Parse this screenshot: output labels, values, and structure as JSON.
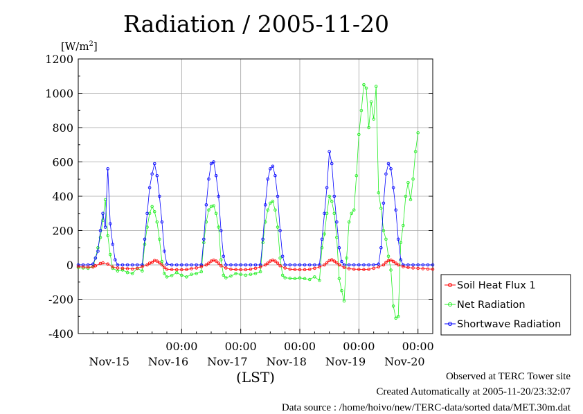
{
  "chart_data": {
    "type": "line",
    "title": "Radiation / 2005-11-20",
    "ylabel": "[W/m",
    "ylabel_sup": "2",
    "ylabel_close": "]",
    "xlabel": "(LST)",
    "ylim": [
      -400,
      1200
    ],
    "yticks": [
      -400,
      -200,
      0,
      200,
      400,
      600,
      800,
      1000,
      1200
    ],
    "ytick_labels": [
      "-400",
      "-200",
      "0",
      "200",
      "400",
      "600",
      "800",
      "1000",
      "1200"
    ],
    "x_hours": [
      0,
      144
    ],
    "x_time_ticks": [
      {
        "hour": 42,
        "label": "00:00"
      },
      {
        "hour": 66,
        "label": "00:00"
      },
      {
        "hour": 90,
        "label": "00:00"
      },
      {
        "hour": 114,
        "label": "00:00"
      },
      {
        "hour": 138,
        "label": "00:00"
      }
    ],
    "x_date_labels": [
      {
        "hour": 12,
        "label": "Nov-15"
      },
      {
        "hour": 36,
        "label": "Nov-16"
      },
      {
        "hour": 60,
        "label": "Nov-17"
      },
      {
        "hour": 84,
        "label": "Nov-18"
      },
      {
        "hour": 108,
        "label": "Nov-19"
      },
      {
        "hour": 132,
        "label": "Nov-20"
      }
    ],
    "grid": true,
    "legend_position": "right",
    "series": [
      {
        "name": "Soil Heat Flux 1",
        "color": "#ff0000",
        "marker": "circle",
        "points": [
          [
            0,
            -10
          ],
          [
            2,
            -12
          ],
          [
            4,
            -13
          ],
          [
            6,
            -12
          ],
          [
            7,
            -5
          ],
          [
            9,
            8
          ],
          [
            10,
            12
          ],
          [
            12,
            5
          ],
          [
            14,
            -12
          ],
          [
            16,
            -18
          ],
          [
            18,
            -20
          ],
          [
            20,
            -22
          ],
          [
            22,
            -24
          ],
          [
            24,
            -20
          ],
          [
            26,
            -10
          ],
          [
            28,
            0
          ],
          [
            29,
            10
          ],
          [
            30,
            15
          ],
          [
            31,
            26
          ],
          [
            32,
            22
          ],
          [
            33,
            12
          ],
          [
            34,
            0
          ],
          [
            35,
            -15
          ],
          [
            36,
            -25
          ],
          [
            38,
            -27
          ],
          [
            40,
            -28
          ],
          [
            42,
            -28
          ],
          [
            44,
            -27
          ],
          [
            46,
            -22
          ],
          [
            48,
            -18
          ],
          [
            50,
            -10
          ],
          [
            52,
            0
          ],
          [
            53,
            10
          ],
          [
            54,
            22
          ],
          [
            55,
            28
          ],
          [
            56,
            22
          ],
          [
            57,
            10
          ],
          [
            58,
            -5
          ],
          [
            60,
            -18
          ],
          [
            62,
            -25
          ],
          [
            64,
            -27
          ],
          [
            66,
            -28
          ],
          [
            68,
            -28
          ],
          [
            70,
            -25
          ],
          [
            72,
            -20
          ],
          [
            74,
            -12
          ],
          [
            76,
            0
          ],
          [
            77,
            10
          ],
          [
            78,
            22
          ],
          [
            79,
            28
          ],
          [
            80,
            22
          ],
          [
            81,
            10
          ],
          [
            82,
            -5
          ],
          [
            84,
            -18
          ],
          [
            86,
            -25
          ],
          [
            88,
            -27
          ],
          [
            90,
            -28
          ],
          [
            92,
            -28
          ],
          [
            94,
            -26
          ],
          [
            96,
            -20
          ],
          [
            98,
            -12
          ],
          [
            100,
            0
          ],
          [
            101,
            12
          ],
          [
            102,
            25
          ],
          [
            103,
            30
          ],
          [
            104,
            22
          ],
          [
            105,
            12
          ],
          [
            106,
            0
          ],
          [
            108,
            -15
          ],
          [
            110,
            -22
          ],
          [
            112,
            -25
          ],
          [
            114,
            -26
          ],
          [
            116,
            -27
          ],
          [
            118,
            -26
          ],
          [
            120,
            -20
          ],
          [
            122,
            -12
          ],
          [
            124,
            0
          ],
          [
            125,
            15
          ],
          [
            126,
            25
          ],
          [
            127,
            28
          ],
          [
            128,
            20
          ],
          [
            129,
            10
          ],
          [
            130,
            0
          ],
          [
            132,
            -10
          ],
          [
            134,
            -15
          ],
          [
            136,
            -18
          ],
          [
            138,
            -20
          ],
          [
            140,
            -22
          ],
          [
            142,
            -24
          ],
          [
            144,
            -25
          ]
        ]
      },
      {
        "name": "Net Radiation",
        "color": "#22ee22",
        "marker": "circle",
        "points": [
          [
            0,
            -15
          ],
          [
            2,
            -18
          ],
          [
            4,
            -20
          ],
          [
            6,
            -10
          ],
          [
            7,
            40
          ],
          [
            8,
            100
          ],
          [
            9,
            160
          ],
          [
            10,
            260
          ],
          [
            11,
            380
          ],
          [
            12,
            170
          ],
          [
            13,
            60
          ],
          [
            14,
            -20
          ],
          [
            16,
            -35
          ],
          [
            18,
            -30
          ],
          [
            20,
            -45
          ],
          [
            22,
            -50
          ],
          [
            24,
            -20
          ],
          [
            26,
            -35
          ],
          [
            27,
            120
          ],
          [
            28,
            220
          ],
          [
            29,
            300
          ],
          [
            30,
            340
          ],
          [
            31,
            310
          ],
          [
            32,
            250
          ],
          [
            33,
            150
          ],
          [
            34,
            20
          ],
          [
            35,
            -50
          ],
          [
            36,
            -70
          ],
          [
            38,
            -62
          ],
          [
            40,
            -45
          ],
          [
            42,
            -60
          ],
          [
            44,
            -70
          ],
          [
            46,
            -55
          ],
          [
            48,
            -50
          ],
          [
            50,
            -40
          ],
          [
            51,
            130
          ],
          [
            52,
            250
          ],
          [
            53,
            320
          ],
          [
            54,
            340
          ],
          [
            55,
            345
          ],
          [
            56,
            300
          ],
          [
            57,
            220
          ],
          [
            58,
            30
          ],
          [
            59,
            -60
          ],
          [
            60,
            -75
          ],
          [
            62,
            -65
          ],
          [
            64,
            -50
          ],
          [
            66,
            -55
          ],
          [
            68,
            -60
          ],
          [
            70,
            -55
          ],
          [
            72,
            -50
          ],
          [
            74,
            -40
          ],
          [
            75,
            130
          ],
          [
            76,
            250
          ],
          [
            77,
            320
          ],
          [
            78,
            360
          ],
          [
            79,
            370
          ],
          [
            80,
            320
          ],
          [
            81,
            220
          ],
          [
            82,
            40
          ],
          [
            83,
            -60
          ],
          [
            84,
            -75
          ],
          [
            86,
            -78
          ],
          [
            88,
            -80
          ],
          [
            90,
            -76
          ],
          [
            92,
            -80
          ],
          [
            94,
            -85
          ],
          [
            96,
            -70
          ],
          [
            98,
            -90
          ],
          [
            99,
            100
          ],
          [
            100,
            180
          ],
          [
            101,
            300
          ],
          [
            102,
            400
          ],
          [
            103,
            370
          ],
          [
            104,
            300
          ],
          [
            105,
            160
          ],
          [
            106,
            -80
          ],
          [
            107,
            -150
          ],
          [
            108,
            -210
          ],
          [
            109,
            40
          ],
          [
            110,
            250
          ],
          [
            111,
            300
          ],
          [
            112,
            320
          ],
          [
            113,
            520
          ],
          [
            114,
            760
          ],
          [
            115,
            900
          ],
          [
            116,
            1050
          ],
          [
            117,
            1030
          ],
          [
            118,
            800
          ],
          [
            119,
            950
          ],
          [
            120,
            850
          ],
          [
            121,
            1040
          ],
          [
            122,
            420
          ],
          [
            123,
            330
          ],
          [
            124,
            200
          ],
          [
            125,
            150
          ],
          [
            126,
            50
          ],
          [
            127,
            -30
          ],
          [
            128,
            -240
          ],
          [
            129,
            -310
          ],
          [
            130,
            -300
          ],
          [
            131,
            130
          ],
          [
            132,
            230
          ],
          [
            133,
            400
          ],
          [
            134,
            480
          ],
          [
            135,
            380
          ],
          [
            136,
            500
          ],
          [
            137,
            660
          ],
          [
            138,
            770
          ]
        ]
      },
      {
        "name": "Shortwave Radiation",
        "color": "#0000ff",
        "marker": "circle",
        "points": [
          [
            0,
            0
          ],
          [
            2,
            0
          ],
          [
            4,
            0
          ],
          [
            6,
            5
          ],
          [
            7,
            40
          ],
          [
            8,
            80
          ],
          [
            9,
            200
          ],
          [
            10,
            300
          ],
          [
            11,
            220
          ],
          [
            12,
            560
          ],
          [
            13,
            240
          ],
          [
            14,
            120
          ],
          [
            15,
            30
          ],
          [
            16,
            0
          ],
          [
            18,
            0
          ],
          [
            20,
            0
          ],
          [
            22,
            0
          ],
          [
            24,
            0
          ],
          [
            26,
            0
          ],
          [
            27,
            150
          ],
          [
            28,
            300
          ],
          [
            29,
            450
          ],
          [
            30,
            530
          ],
          [
            31,
            590
          ],
          [
            32,
            520
          ],
          [
            33,
            400
          ],
          [
            34,
            250
          ],
          [
            35,
            80
          ],
          [
            36,
            5
          ],
          [
            38,
            0
          ],
          [
            40,
            0
          ],
          [
            42,
            0
          ],
          [
            44,
            0
          ],
          [
            46,
            0
          ],
          [
            48,
            0
          ],
          [
            50,
            0
          ],
          [
            51,
            150
          ],
          [
            52,
            350
          ],
          [
            53,
            500
          ],
          [
            54,
            590
          ],
          [
            55,
            600
          ],
          [
            56,
            520
          ],
          [
            57,
            400
          ],
          [
            58,
            200
          ],
          [
            59,
            50
          ],
          [
            60,
            0
          ],
          [
            62,
            0
          ],
          [
            64,
            0
          ],
          [
            66,
            0
          ],
          [
            68,
            0
          ],
          [
            70,
            0
          ],
          [
            72,
            0
          ],
          [
            74,
            0
          ],
          [
            75,
            150
          ],
          [
            76,
            350
          ],
          [
            77,
            500
          ],
          [
            78,
            560
          ],
          [
            79,
            575
          ],
          [
            80,
            520
          ],
          [
            81,
            400
          ],
          [
            82,
            200
          ],
          [
            83,
            50
          ],
          [
            84,
            0
          ],
          [
            86,
            0
          ],
          [
            88,
            0
          ],
          [
            90,
            0
          ],
          [
            92,
            0
          ],
          [
            94,
            0
          ],
          [
            96,
            0
          ],
          [
            98,
            0
          ],
          [
            99,
            150
          ],
          [
            100,
            300
          ],
          [
            101,
            450
          ],
          [
            102,
            660
          ],
          [
            103,
            590
          ],
          [
            104,
            400
          ],
          [
            105,
            250
          ],
          [
            106,
            100
          ],
          [
            107,
            20
          ],
          [
            108,
            0
          ],
          [
            110,
            0
          ],
          [
            112,
            0
          ],
          [
            114,
            0
          ],
          [
            116,
            0
          ],
          [
            118,
            0
          ],
          [
            120,
            0
          ],
          [
            122,
            5
          ],
          [
            123,
            100
          ],
          [
            124,
            360
          ],
          [
            125,
            530
          ],
          [
            126,
            590
          ],
          [
            127,
            560
          ],
          [
            128,
            450
          ],
          [
            129,
            320
          ],
          [
            130,
            150
          ],
          [
            131,
            30
          ],
          [
            132,
            0
          ],
          [
            134,
            0
          ],
          [
            136,
            0
          ],
          [
            138,
            0
          ],
          [
            140,
            0
          ],
          [
            142,
            0
          ],
          [
            144,
            0
          ]
        ]
      }
    ]
  },
  "footer": {
    "observed": "Observed at TERC Tower site",
    "created": "Created Automatically at 2005-11-20/23:32:07",
    "source": "Data source : /home/hoivo/new/TERC-data/sorted  data/MET.30m.dat"
  }
}
